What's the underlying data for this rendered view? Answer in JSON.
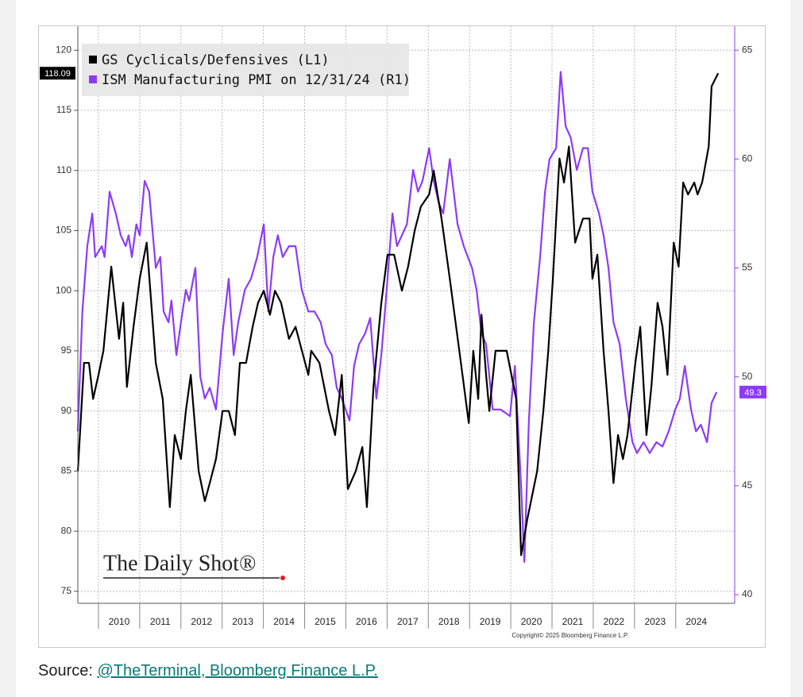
{
  "chart_data": {
    "type": "line",
    "legend": "top-left",
    "grid": true,
    "xlim": [
      2009.5,
      2025.43
    ],
    "xticks": [
      2010,
      2011,
      2012,
      2013,
      2014,
      2015,
      2016,
      2017,
      2018,
      2019,
      2020,
      2021,
      2022,
      2023,
      2024
    ],
    "ylim": [
      74,
      122
    ],
    "yticks": [
      75,
      80,
      85,
      90,
      95,
      100,
      105,
      110,
      115,
      120
    ],
    "y2lim": [
      39.6,
      66.1
    ],
    "y2ticks": [
      40,
      45,
      50,
      55,
      60,
      65
    ],
    "series": [
      {
        "name": "GS Cyclicals/Defensives (L1)",
        "color": "#000000",
        "x": [
          2009.5,
          2009.65,
          2009.77,
          2009.87,
          2010.0,
          2010.12,
          2010.31,
          2010.5,
          2010.6,
          2010.69,
          2010.85,
          2011.0,
          2011.17,
          2011.39,
          2011.56,
          2011.73,
          2011.85,
          2012.0,
          2012.12,
          2012.24,
          2012.43,
          2012.58,
          2012.7,
          2012.85,
          2013.01,
          2013.16,
          2013.31,
          2013.43,
          2013.58,
          2013.74,
          2013.87,
          2014.01,
          2014.16,
          2014.28,
          2014.43,
          2014.62,
          2014.78,
          2015.09,
          2015.16,
          2015.36,
          2015.59,
          2015.74,
          2015.9,
          2016.05,
          2016.24,
          2016.4,
          2016.51,
          2016.67,
          2016.86,
          2017.01,
          2017.17,
          2017.36,
          2017.51,
          2017.67,
          2017.82,
          2018.02,
          2018.13,
          2018.32,
          2018.52,
          2018.79,
          2018.98,
          2019.09,
          2019.21,
          2019.29,
          2019.4,
          2019.48,
          2019.63,
          2019.9,
          2020.13,
          2020.25,
          2020.4,
          2020.64,
          2020.79,
          2020.91,
          2021.02,
          2021.18,
          2021.29,
          2021.41,
          2021.56,
          2021.75,
          2021.91,
          2021.98,
          2022.1,
          2022.25,
          2022.37,
          2022.49,
          2022.6,
          2022.72,
          2022.83,
          2023.02,
          2023.14,
          2023.29,
          2023.41,
          2023.56,
          2023.68,
          2023.8,
          2023.95,
          2024.07,
          2024.18,
          2024.3,
          2024.45,
          2024.53,
          2024.64,
          2024.8,
          2024.87,
          2025.03
        ],
        "values": [
          85,
          94,
          94,
          91,
          93,
          95,
          102,
          96,
          99,
          92,
          97,
          101,
          104,
          94,
          91,
          82,
          88,
          86,
          90,
          93,
          85,
          82.5,
          84,
          86,
          90,
          90,
          88,
          94,
          94,
          97,
          99,
          100,
          98,
          100,
          99,
          96,
          97,
          93,
          95,
          94,
          90,
          88,
          93,
          83.5,
          85,
          87,
          82,
          92,
          99,
          103,
          103,
          100,
          102,
          105,
          107,
          108,
          110,
          106,
          101,
          94,
          89,
          95,
          91,
          98,
          93,
          90,
          95,
          95,
          91,
          78,
          81,
          85,
          90,
          95,
          101,
          111,
          109,
          112,
          104,
          106,
          106,
          101,
          103,
          95,
          90,
          84,
          88,
          86,
          88,
          94,
          97,
          88,
          92,
          99,
          97,
          93,
          104,
          102,
          109,
          108,
          109,
          108,
          109,
          112,
          117,
          118.09
        ]
      },
      {
        "name": "ISM Manufacturing PMI on 12/31/24 (R1)",
        "color": "#8c3cf5",
        "axis": "y2",
        "x": [
          2009.5,
          2009.61,
          2009.73,
          2009.85,
          2009.92,
          2010.08,
          2010.15,
          2010.27,
          2010.42,
          2010.54,
          2010.66,
          2010.73,
          2010.81,
          2010.92,
          2011.0,
          2011.12,
          2011.23,
          2011.39,
          2011.5,
          2011.58,
          2011.7,
          2011.77,
          2011.89,
          2012.0,
          2012.12,
          2012.2,
          2012.35,
          2012.47,
          2012.58,
          2012.7,
          2012.85,
          2013.01,
          2013.16,
          2013.28,
          2013.39,
          2013.55,
          2013.7,
          2013.85,
          2014.01,
          2014.12,
          2014.24,
          2014.35,
          2014.47,
          2014.62,
          2014.78,
          2014.93,
          2015.09,
          2015.24,
          2015.39,
          2015.51,
          2015.66,
          2015.78,
          2015.9,
          2016.09,
          2016.2,
          2016.32,
          2016.47,
          2016.59,
          2016.74,
          2016.86,
          2016.97,
          2017.13,
          2017.24,
          2017.36,
          2017.48,
          2017.63,
          2017.75,
          2017.86,
          2018.02,
          2018.13,
          2018.25,
          2018.36,
          2018.52,
          2018.71,
          2018.86,
          2019.06,
          2019.17,
          2019.29,
          2019.4,
          2019.56,
          2019.75,
          2019.98,
          2020.1,
          2020.25,
          2020.33,
          2020.44,
          2020.56,
          2020.71,
          2020.83,
          2020.94,
          2021.1,
          2021.21,
          2021.33,
          2021.45,
          2021.6,
          2021.75,
          2021.87,
          2021.98,
          2022.14,
          2022.25,
          2022.37,
          2022.49,
          2022.64,
          2022.79,
          2022.95,
          2023.06,
          2023.22,
          2023.37,
          2023.53,
          2023.68,
          2023.83,
          2023.99,
          2024.1,
          2024.22,
          2024.37,
          2024.49,
          2024.61,
          2024.76,
          2024.87,
          2024.99
        ],
        "values": [
          47.5,
          53,
          56,
          57.5,
          55.5,
          56,
          55.5,
          58.5,
          57.5,
          56.5,
          56,
          56.5,
          55.5,
          57,
          56.5,
          59,
          58.5,
          55,
          55.5,
          53,
          52.5,
          53.5,
          51,
          52.5,
          54,
          53.5,
          55,
          50,
          49,
          49.5,
          48.5,
          52,
          54.5,
          51,
          52.5,
          54,
          54.5,
          55.5,
          57,
          53,
          55.5,
          56.5,
          55.5,
          56,
          56,
          54,
          53,
          53,
          52.5,
          51.5,
          51,
          49.5,
          49,
          48,
          50.5,
          51.5,
          52,
          52.7,
          49,
          51,
          53.5,
          57.5,
          56,
          56.5,
          57,
          59.5,
          58.5,
          59,
          60.5,
          59,
          58,
          57.5,
          60,
          57,
          56,
          55,
          54,
          52,
          51.5,
          48.5,
          48.5,
          48.2,
          50.5,
          45,
          41.5,
          48,
          52.5,
          55.5,
          58.5,
          60,
          60.5,
          64,
          61.5,
          61,
          59.5,
          60.5,
          60.5,
          58.5,
          57.5,
          56.5,
          55,
          52.5,
          51.5,
          49,
          47,
          46.5,
          47,
          46.5,
          47,
          46.8,
          47.5,
          48.5,
          49,
          50.5,
          48.5,
          47.5,
          47.8,
          47,
          48.8,
          49.3
        ]
      }
    ],
    "watermark": "The Daily Shot®",
    "copyright": "Copyright© 2025 Bloomberg Finance L.P."
  },
  "source": {
    "label": "Source:",
    "link": "@TheTerminal, Bloomberg Finance L.P."
  }
}
